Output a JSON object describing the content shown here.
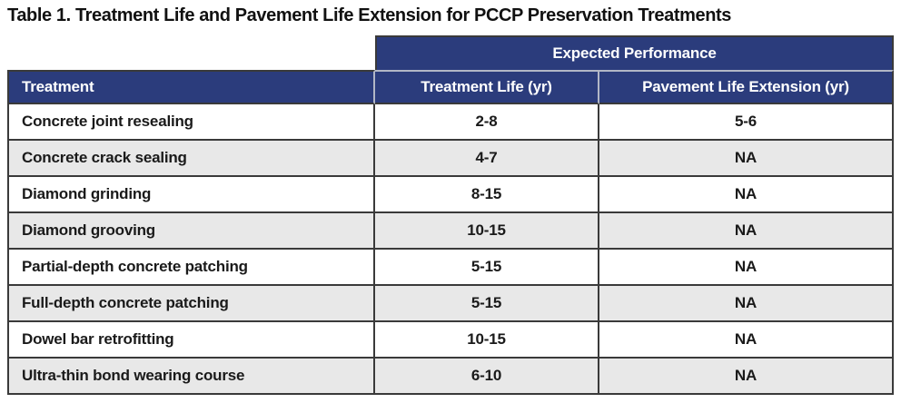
{
  "title": "Table 1. Treatment Life and Pavement Life Extension for PCCP Preservation Treatments",
  "table": {
    "group_header": "Expected Performance",
    "columns": [
      "Treatment",
      "Treatment Life (yr)",
      "Pavement Life Extension (yr)"
    ],
    "rows": [
      {
        "treatment": "Concrete joint resealing",
        "treatment_life": "2-8",
        "pavement_life_extension": "5-6"
      },
      {
        "treatment": "Concrete crack sealing",
        "treatment_life": "4-7",
        "pavement_life_extension": "NA"
      },
      {
        "treatment": "Diamond grinding",
        "treatment_life": "8-15",
        "pavement_life_extension": "NA"
      },
      {
        "treatment": "Diamond grooving",
        "treatment_life": "10-15",
        "pavement_life_extension": "NA"
      },
      {
        "treatment": "Partial-depth concrete patching",
        "treatment_life": "5-15",
        "pavement_life_extension": "NA"
      },
      {
        "treatment": "Full-depth concrete patching",
        "treatment_life": "5-15",
        "pavement_life_extension": "NA"
      },
      {
        "treatment": "Dowel bar retrofitting",
        "treatment_life": "10-15",
        "pavement_life_extension": "NA"
      },
      {
        "treatment": "Ultra-thin bond wearing course",
        "treatment_life": "6-10",
        "pavement_life_extension": "NA"
      }
    ],
    "colors": {
      "header_bg": "#2b3c7c",
      "header_text": "#ffffff",
      "row_bg": "#ffffff",
      "row_alt_bg": "#e8e8e8",
      "border_dark": "#3a3a3a",
      "border_light": "#b2b7c6",
      "text": "#1a1a1a"
    }
  }
}
